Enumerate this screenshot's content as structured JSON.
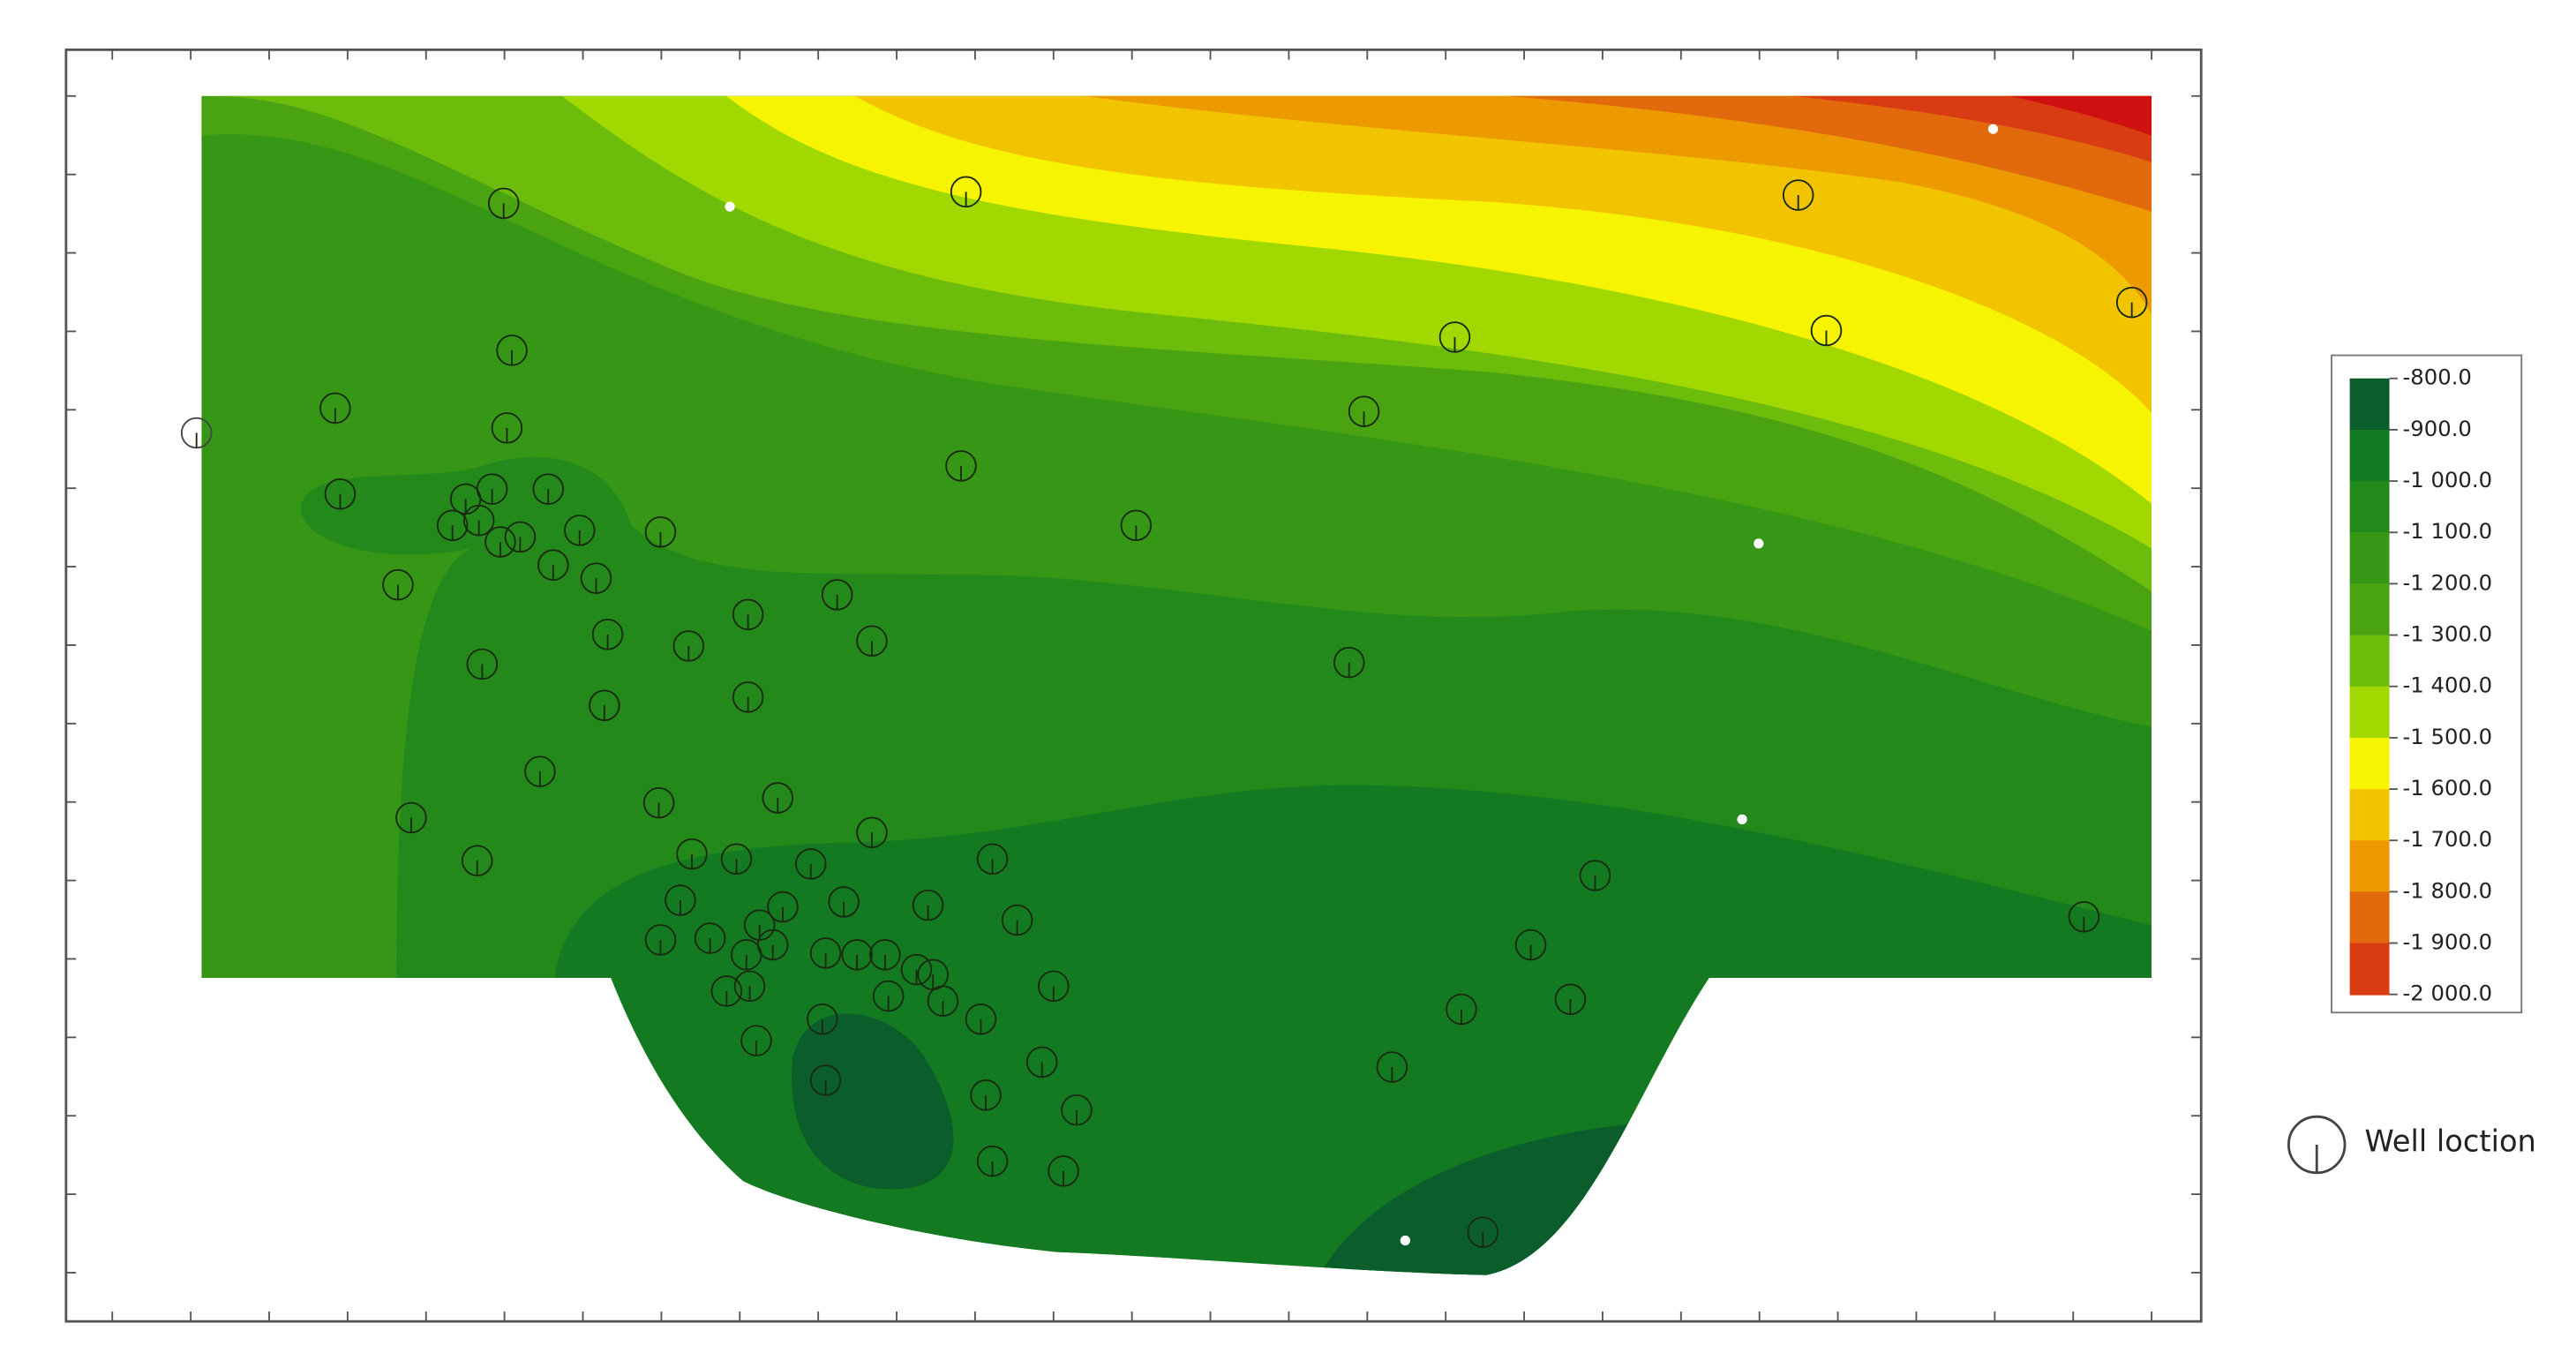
{
  "legend": {
    "labels": [
      "-800.0",
      "-900.0",
      "-1 000.0",
      "-1 100.0",
      "-1 200.0",
      "-1 300.0",
      "-1 400.0",
      "-1 500.0",
      "-1 600.0",
      "-1 700.0",
      "-1 800.0",
      "-1 900.0",
      "-2 000.0"
    ],
    "colors": [
      "#0b5e2c",
      "#137a22",
      "#24891b",
      "#369616",
      "#4aa311",
      "#6cbc0c",
      "#a0d800",
      "#f6f400",
      "#f2c400",
      "#ec9a00",
      "#e26a0c",
      "#d93c12",
      "#cf1010"
    ]
  },
  "well_legend": {
    "label": "Well loction"
  }
}
